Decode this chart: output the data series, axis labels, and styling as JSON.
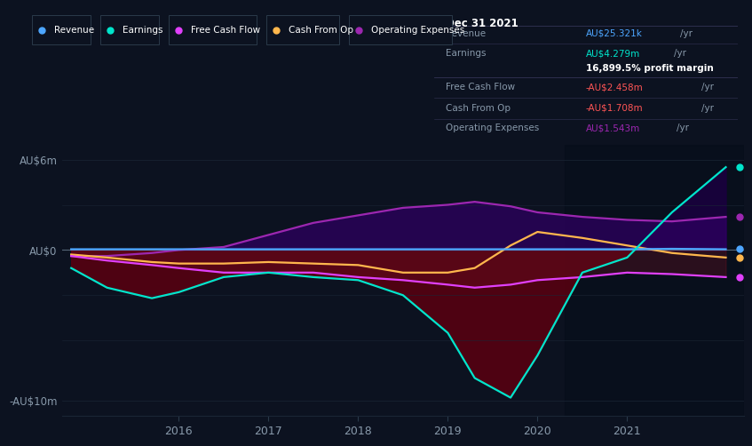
{
  "bg_color": "#0c1220",
  "plot_bg_color": "#0c1220",
  "grid_color": "#1a2535",
  "ylim": [
    -11,
    7
  ],
  "xlim": [
    2014.7,
    2022.3
  ],
  "yticks_labels": [
    "AU$6m",
    "AU$0",
    "-AU$10m"
  ],
  "yticks_values": [
    6,
    0,
    -10
  ],
  "x_years": [
    2014.8,
    2015.2,
    2015.7,
    2016.0,
    2016.5,
    2017.0,
    2017.5,
    2018.0,
    2018.5,
    2019.0,
    2019.3,
    2019.7,
    2020.0,
    2020.5,
    2021.0,
    2021.5,
    2022.1
  ],
  "revenue": [
    0.05,
    0.05,
    0.05,
    0.05,
    0.05,
    0.05,
    0.05,
    0.05,
    0.05,
    0.05,
    0.05,
    0.05,
    0.05,
    0.05,
    0.05,
    0.08,
    0.05
  ],
  "earnings": [
    -1.2,
    -2.5,
    -3.2,
    -2.8,
    -1.8,
    -1.5,
    -1.8,
    -2.0,
    -3.0,
    -5.5,
    -8.5,
    -9.8,
    -7.0,
    -1.5,
    -0.5,
    2.5,
    5.5
  ],
  "free_cash": [
    -0.4,
    -0.7,
    -1.0,
    -1.2,
    -1.5,
    -1.5,
    -1.5,
    -1.8,
    -2.0,
    -2.3,
    -2.5,
    -2.3,
    -2.0,
    -1.8,
    -1.5,
    -1.6,
    -1.8
  ],
  "cash_from_op": [
    -0.3,
    -0.5,
    -0.8,
    -0.9,
    -0.9,
    -0.8,
    -0.9,
    -1.0,
    -1.5,
    -1.5,
    -1.2,
    0.3,
    1.2,
    0.8,
    0.3,
    -0.2,
    -0.5
  ],
  "op_expenses": [
    -0.4,
    -0.4,
    -0.2,
    0.0,
    0.2,
    1.0,
    1.8,
    2.3,
    2.8,
    3.0,
    3.2,
    2.9,
    2.5,
    2.2,
    2.0,
    1.9,
    2.2
  ],
  "revenue_color": "#4da6ff",
  "earnings_color": "#00e5cc",
  "free_cash_color": "#e040fb",
  "cash_from_op_color": "#ffb74d",
  "op_expenses_color": "#9c27b0",
  "darker_region_start": 2020.3,
  "info_box": {
    "date": "Dec 31 2021",
    "revenue_label": "Revenue",
    "revenue_value": "AU$25.321k",
    "revenue_color": "#4da6ff",
    "earnings_label": "Earnings",
    "earnings_value": "AU$4.279m",
    "earnings_color": "#00e5cc",
    "margin_text": "16,899.5% profit margin",
    "free_cash_label": "Free Cash Flow",
    "free_cash_value": "-AU$2.458m",
    "free_cash_color": "#ff5555",
    "cash_op_label": "Cash From Op",
    "cash_op_value": "-AU$1.708m",
    "cash_op_color": "#ff5555",
    "op_exp_label": "Operating Expenses",
    "op_exp_value": "AU$1.543m",
    "op_exp_color": "#9c27b0"
  },
  "legend": [
    {
      "label": "Revenue",
      "color": "#4da6ff"
    },
    {
      "label": "Earnings",
      "color": "#00e5cc"
    },
    {
      "label": "Free Cash Flow",
      "color": "#e040fb"
    },
    {
      "label": "Cash From Op",
      "color": "#ffb74d"
    },
    {
      "label": "Operating Expenses",
      "color": "#9c27b0"
    }
  ]
}
